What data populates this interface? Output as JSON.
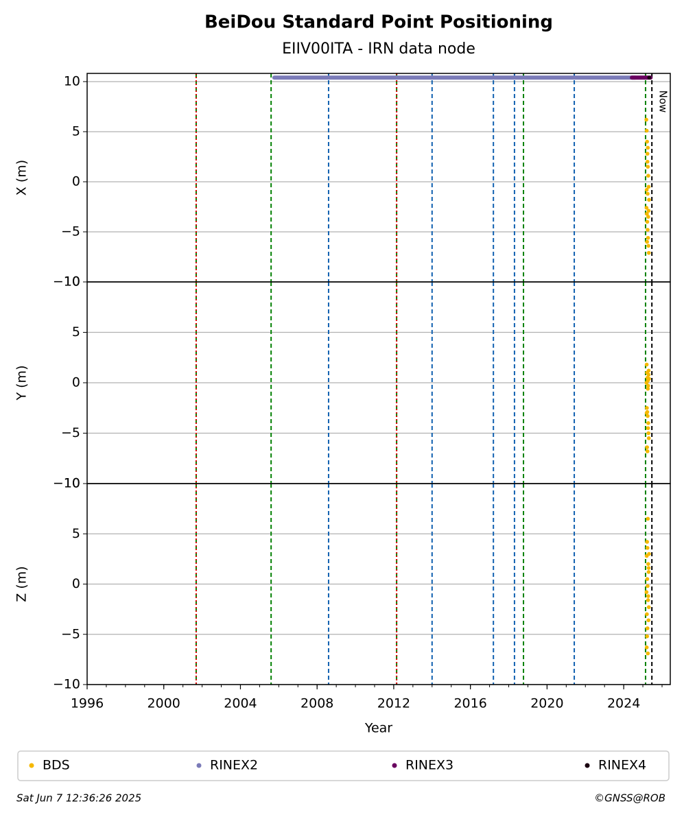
{
  "chart_data": [
    {
      "type": "scatter",
      "title": "BeiDou Standard Point Positioning",
      "subtitle": "EIIV00ITA - IRN data node",
      "ylabel": "X (m)",
      "ylim": [
        -10,
        10.82
      ],
      "yticks": [
        {
          "value": -10,
          "label": "−10"
        },
        {
          "value": -5,
          "label": "−5"
        },
        0,
        5,
        10
      ],
      "grid": true,
      "annotation": "Now",
      "vlines": [
        {
          "x": 2001.69,
          "color": "#008000",
          "style": "dashed"
        },
        {
          "x": 2001.69,
          "color": "#e00000",
          "style": "dotted"
        },
        {
          "x": 2005.6,
          "color": "#008000",
          "style": "dashed"
        },
        {
          "x": 2008.6,
          "color": "#1060b0",
          "style": "dashed"
        },
        {
          "x": 2012.15,
          "color": "#008000",
          "style": "dashed"
        },
        {
          "x": 2012.15,
          "color": "#e00000",
          "style": "dotted"
        },
        {
          "x": 2014.0,
          "color": "#1060b0",
          "style": "dashed"
        },
        {
          "x": 2017.2,
          "color": "#1060b0",
          "style": "dashed"
        },
        {
          "x": 2018.3,
          "color": "#1060b0",
          "style": "dashed"
        },
        {
          "x": 2018.77,
          "color": "#008000",
          "style": "dashed"
        },
        {
          "x": 2021.42,
          "color": "#1060b0",
          "style": "dashed"
        },
        {
          "x": 2025.14,
          "color": "#008000",
          "style": "dashed"
        },
        {
          "x": 2025.47,
          "color": "#000000",
          "style": "dashed"
        }
      ],
      "series": [
        {
          "name": "BDS",
          "color": "#f5b800",
          "style": "dots",
          "x": [
            2025.18,
            2025.2,
            2025.22,
            2025.24,
            2025.26,
            2025.28,
            2025.3,
            2025.32,
            2025.19,
            2025.21,
            2025.23,
            2025.25,
            2025.27,
            2025.29,
            2025.31,
            2025.2,
            2025.24,
            2025.28,
            2025.22,
            2025.26,
            2025.3,
            2025.25
          ],
          "values": [
            6.2,
            5.1,
            4.0,
            2.8,
            1.5,
            0.6,
            -0.5,
            -1.8,
            -2.6,
            -3.2,
            -4.0,
            -4.8,
            -5.6,
            -6.4,
            -7.1,
            -0.8,
            2.0,
            -3.5,
            -6.0,
            3.4,
            -2.9,
            -1.2
          ]
        },
        {
          "name": "RINEX2",
          "color": "#7b7bb8",
          "style": "line",
          "x": [
            2005.77,
            2024.6
          ],
          "values": [
            10.4,
            10.4
          ]
        },
        {
          "name": "RINEX3",
          "color": "#6a0060",
          "style": "line",
          "x": [
            2024.43,
            2025.4
          ],
          "values": [
            10.4,
            10.4
          ]
        },
        {
          "name": "RINEX4",
          "color": "#1a0010",
          "style": "dots",
          "x": [
            2025.33
          ],
          "values": [
            10.4
          ]
        }
      ]
    },
    {
      "type": "scatter",
      "ylabel": "Y (m)",
      "ylim": [
        -10,
        10
      ],
      "yticks": [
        {
          "value": -10,
          "label": "−10"
        },
        {
          "value": -5,
          "label": "−5"
        },
        0,
        5,
        10
      ],
      "grid": true,
      "series": [
        {
          "name": "BDS",
          "color": "#f5b800",
          "style": "dots",
          "x": [
            2025.2,
            2025.22,
            2025.24,
            2025.26,
            2025.28,
            2025.3,
            2025.21,
            2025.23,
            2025.25,
            2025.27,
            2025.29,
            2025.31,
            2025.22,
            2025.24,
            2025.19,
            2025.3,
            2025.26,
            2025.28,
            2025.32,
            2025.2
          ],
          "values": [
            1.8,
            1.0,
            0.5,
            0.2,
            -0.3,
            0.8,
            -2.5,
            -2.9,
            -3.3,
            -4.5,
            -5.0,
            -5.5,
            -6.4,
            -6.8,
            0.0,
            1.2,
            -0.6,
            -4.0,
            0.4,
            -3.0
          ]
        }
      ]
    },
    {
      "type": "scatter",
      "ylabel": "Z (m)",
      "xlabel": "Year",
      "ylim": [
        -10,
        10
      ],
      "xlim": [
        1996,
        2026.43
      ],
      "xticks": [
        1996,
        2000,
        2004,
        2008,
        2012,
        2016,
        2020,
        2024
      ],
      "yticks": [
        {
          "value": -10,
          "label": "−10"
        },
        {
          "value": -5,
          "label": "−5"
        },
        0,
        5,
        10
      ],
      "grid": true,
      "series": [
        {
          "name": "BDS",
          "color": "#f5b800",
          "style": "dots",
          "x": [
            2025.26,
            2025.22,
            2025.24,
            2025.2,
            2025.28,
            2025.3,
            2025.23,
            2025.25,
            2025.19,
            2025.27,
            2025.31,
            2025.21,
            2025.29,
            2025.24,
            2025.22,
            2025.2,
            2025.26,
            2025.3,
            2025.28,
            2025.32
          ],
          "values": [
            6.5,
            4.2,
            3.6,
            2.8,
            2.0,
            1.2,
            0.5,
            -0.2,
            -0.8,
            -1.6,
            -2.3,
            -3.0,
            -3.6,
            -4.4,
            -5.2,
            -6.3,
            -6.9,
            1.6,
            -1.2,
            3.0
          ]
        }
      ]
    }
  ],
  "footer_left": "Sat Jun  7 12:36:26 2025",
  "footer_right": "©GNSS@ROB"
}
